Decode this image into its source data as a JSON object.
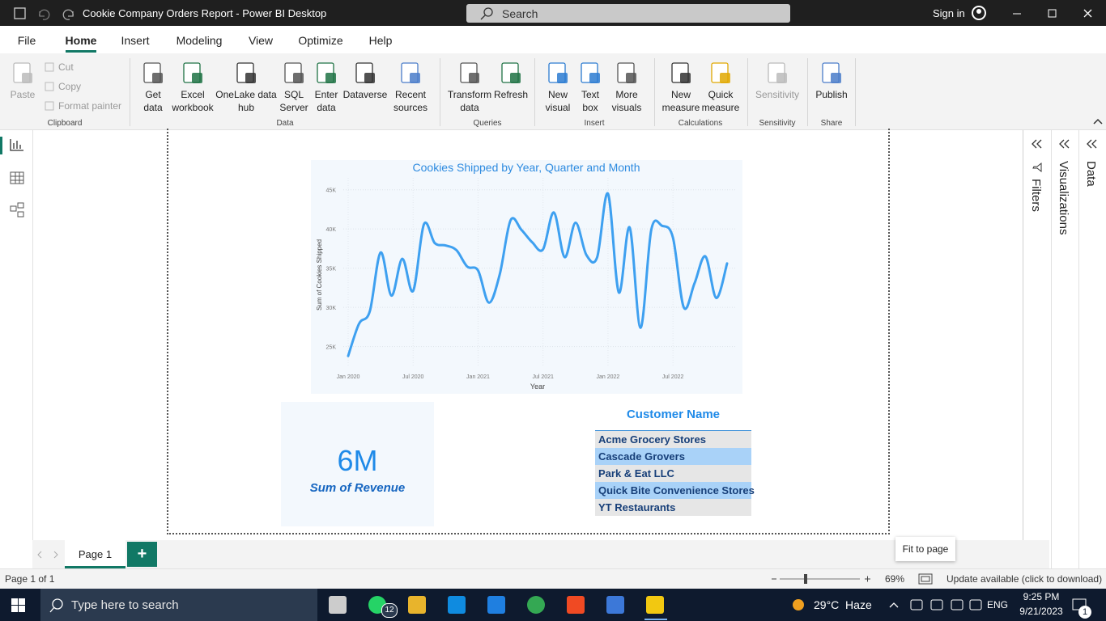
{
  "window": {
    "title": "Cookie Company Orders Report - Power BI Desktop",
    "search": "Search",
    "sign_in": "Sign in"
  },
  "menu": [
    "File",
    "Home",
    "Insert",
    "Modeling",
    "View",
    "Optimize",
    "Help"
  ],
  "ribbon": {
    "small_buttons": [
      "Cut",
      "Copy",
      "Format painter"
    ],
    "groups": [
      {
        "label": "Clipboard",
        "buttons": [
          "Paste"
        ]
      },
      {
        "label": "Data",
        "buttons": [
          "Get data",
          "Excel workbook",
          "OneLake data hub",
          "SQL Server",
          "Enter data",
          "Dataverse",
          "Recent sources"
        ]
      },
      {
        "label": "Queries",
        "buttons": [
          "Transform data",
          "Refresh"
        ]
      },
      {
        "label": "Insert",
        "buttons": [
          "New visual",
          "Text box",
          "More visuals"
        ]
      },
      {
        "label": "Calculations",
        "buttons": [
          "New measure",
          "Quick measure"
        ]
      },
      {
        "label": "Sensitivity",
        "buttons": [
          "Sensitivity"
        ]
      },
      {
        "label": "Share",
        "buttons": [
          "Publish"
        ]
      }
    ]
  },
  "chart_data": {
    "type": "line",
    "title": "Cookies Shipped by Year, Quarter and Month",
    "x_label": "Year",
    "y_label": "Sum of Cookies Shipped",
    "x": [
      "2020-01",
      "2020-02",
      "2020-03",
      "2020-04",
      "2020-05",
      "2020-06",
      "2020-07",
      "2020-08",
      "2020-09",
      "2020-10",
      "2020-11",
      "2020-12",
      "2021-01",
      "2021-02",
      "2021-03",
      "2021-04",
      "2021-05",
      "2021-06",
      "2021-07",
      "2021-08",
      "2021-09",
      "2021-10",
      "2021-11",
      "2021-12",
      "2022-01",
      "2022-02",
      "2022-03",
      "2022-04",
      "2022-05",
      "2022-06",
      "2022-07",
      "2022-08",
      "2022-09",
      "2022-10",
      "2022-11",
      "2022-12"
    ],
    "series": [
      {
        "name": "Sum of Cookies Shipped",
        "color": "#3ea0f0",
        "values": [
          23800,
          27900,
          29500,
          37000,
          31500,
          36200,
          32100,
          40600,
          38200,
          37900,
          37300,
          35200,
          34700,
          30600,
          34200,
          41100,
          39900,
          38300,
          37400,
          42100,
          36400,
          40800,
          36700,
          36400,
          44500,
          31900,
          40200,
          27400,
          39900,
          40400,
          38900,
          30000,
          33100,
          36500,
          31200,
          35600
        ]
      }
    ],
    "xlim": [
      "2020-01",
      "2022-12"
    ],
    "xticks": [
      {
        "value": "2020-01",
        "label": "Jan 2020"
      },
      {
        "value": "2020-07",
        "label": "Jul 2020"
      },
      {
        "value": "2021-01",
        "label": "Jan 2021"
      },
      {
        "value": "2021-07",
        "label": "Jul 2021"
      },
      {
        "value": "2022-01",
        "label": "Jan 2022"
      },
      {
        "value": "2022-07",
        "label": "Jul 2022"
      }
    ],
    "ylim": [
      23000,
      46000
    ],
    "yticks": [
      {
        "value": 25000,
        "label": "25K"
      },
      {
        "value": 30000,
        "label": "30K"
      },
      {
        "value": 35000,
        "label": "35K"
      },
      {
        "value": 40000,
        "label": "40K"
      },
      {
        "value": 45000,
        "label": "45K"
      }
    ],
    "grid": true
  },
  "card": {
    "value": "6M",
    "label": "Sum of Revenue"
  },
  "slicer": {
    "title": "Customer Name",
    "items": [
      "Acme Grocery Stores",
      "Cascade Grovers",
      "Park & Eat LLC",
      "Quick Bite Convenience Stores",
      "YT Restaurants"
    ]
  },
  "panes": [
    "Filters",
    "Visualizations",
    "Data"
  ],
  "pages": {
    "tabs": [
      "Page 1"
    ],
    "add": "+"
  },
  "tooltip": "Fit to page",
  "status": {
    "page": "Page 1 of 1",
    "zoom": "69%",
    "update": "Update available (click to download)"
  },
  "taskbar": {
    "search": "Type here to search",
    "badge": "12",
    "weather": "29°C  Haze",
    "language": "ENG",
    "time": "9:25 PM",
    "date": "9/21/2023",
    "notifications": "1"
  }
}
